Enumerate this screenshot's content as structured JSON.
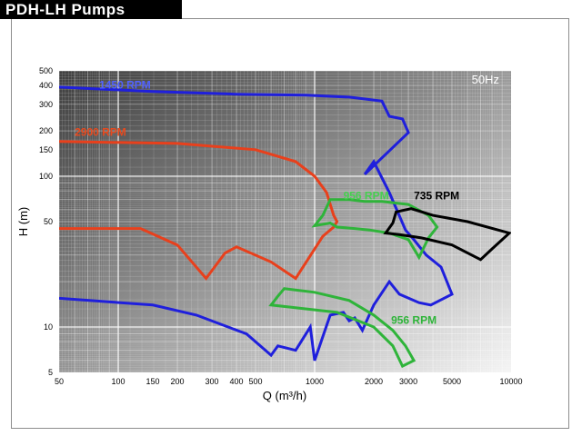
{
  "header": {
    "title": "PDH-LH Pumps"
  },
  "colors": {
    "blue": "#1f1fdc",
    "red": "#e8401c",
    "green": "#2fb43a",
    "black": "#000000"
  },
  "chart_data": {
    "type": "line",
    "xscale": "log",
    "yscale": "log",
    "xlabel": "Q (m³/h)",
    "ylabel": "H (m)",
    "xlim": [
      50,
      10000
    ],
    "ylim": [
      5,
      500
    ],
    "frequency_label": "50Hz",
    "xticks": [
      50,
      100,
      150,
      200,
      300,
      400,
      500,
      1000,
      2000,
      3000,
      5000,
      10000
    ],
    "yticks": [
      5,
      10,
      50,
      100,
      150,
      200,
      300,
      400,
      500
    ],
    "series": [
      {
        "name": "1450 RPM",
        "color": "blue",
        "kind": "line",
        "label_at": [
          80,
          382
        ],
        "label_color": "#5060ff",
        "points": [
          [
            50,
            390
          ],
          [
            150,
            365
          ],
          [
            400,
            350
          ],
          [
            900,
            345
          ],
          [
            1500,
            335
          ],
          [
            2200,
            315
          ],
          [
            2400,
            250
          ],
          [
            2800,
            240
          ],
          [
            3000,
            195
          ],
          [
            1800,
            103
          ],
          [
            2000,
            125
          ],
          [
            2400,
            78
          ],
          [
            2900,
            44
          ],
          [
            3200,
            38
          ],
          [
            3700,
            30
          ],
          [
            4400,
            25
          ],
          [
            5000,
            16.5
          ],
          [
            3900,
            14
          ],
          [
            3400,
            14.5
          ],
          [
            2700,
            16.5
          ],
          [
            2400,
            20
          ],
          [
            2000,
            14
          ],
          [
            1750,
            9.5
          ],
          [
            1600,
            11.5
          ],
          [
            1500,
            11
          ],
          [
            1400,
            12.5
          ],
          [
            1200,
            12
          ],
          [
            1000,
            6
          ],
          [
            950,
            10
          ],
          [
            800,
            7
          ],
          [
            650,
            7.5
          ],
          [
            600,
            6.5
          ],
          [
            450,
            9
          ],
          [
            250,
            12
          ],
          [
            150,
            14
          ],
          [
            50,
            15.5
          ]
        ]
      },
      {
        "name": "2900 RPM",
        "color": "red",
        "kind": "line",
        "label_at": [
          60,
          185
        ],
        "label_color": "#e84a1e",
        "points": [
          [
            50,
            170
          ],
          [
            200,
            165
          ],
          [
            500,
            150
          ],
          [
            800,
            125
          ],
          [
            1000,
            100
          ],
          [
            1150,
            78
          ],
          [
            1250,
            55
          ],
          [
            1300,
            50
          ],
          [
            1250,
            46
          ],
          [
            1100,
            40
          ],
          [
            800,
            21
          ],
          [
            600,
            27
          ],
          [
            400,
            34
          ],
          [
            350,
            31
          ],
          [
            280,
            21
          ],
          [
            200,
            35
          ],
          [
            130,
            45
          ],
          [
            50,
            45
          ]
        ]
      },
      {
        "name": "956 RPM",
        "color": "green",
        "kind": "ring",
        "label_at": [
          1400,
          70
        ],
        "label_color": "#46d050",
        "points": [
          [
            1200,
            70
          ],
          [
            1500,
            70
          ],
          [
            1800,
            68
          ],
          [
            2200,
            68
          ],
          [
            3000,
            65
          ],
          [
            3800,
            55
          ],
          [
            4200,
            46
          ],
          [
            3800,
            39
          ],
          [
            3400,
            29
          ],
          [
            3000,
            38
          ],
          [
            2400,
            42
          ],
          [
            1900,
            44
          ],
          [
            1600,
            45
          ],
          [
            1300,
            46
          ],
          [
            1200,
            49
          ],
          [
            1000,
            47
          ],
          [
            1100,
            55
          ],
          [
            1200,
            70
          ]
        ]
      },
      {
        "name": "956 RPM",
        "color": "green",
        "kind": "ring",
        "label_at": [
          2450,
          10.5
        ],
        "label_color": "#2fb43a",
        "points": [
          [
            700,
            18
          ],
          [
            1000,
            17
          ],
          [
            1500,
            15
          ],
          [
            2000,
            12
          ],
          [
            2500,
            9.5
          ],
          [
            2900,
            7.5
          ],
          [
            3200,
            6
          ],
          [
            2800,
            5.5
          ],
          [
            2500,
            7.5
          ],
          [
            2000,
            10
          ],
          [
            1300,
            12.5
          ],
          [
            1000,
            13
          ],
          [
            600,
            14
          ],
          [
            650,
            16
          ],
          [
            700,
            18
          ]
        ]
      },
      {
        "name": "735 RPM",
        "color": "black",
        "kind": "ring",
        "label_at": [
          3200,
          70
        ],
        "label_color": "#000000",
        "points": [
          [
            2600,
            58
          ],
          [
            3100,
            61
          ],
          [
            4000,
            55
          ],
          [
            6000,
            50
          ],
          [
            9800,
            42
          ],
          [
            8000,
            33
          ],
          [
            7000,
            28
          ],
          [
            5000,
            35
          ],
          [
            3500,
            39
          ],
          [
            2700,
            41
          ],
          [
            2300,
            42
          ],
          [
            2500,
            49
          ],
          [
            2600,
            58
          ]
        ]
      }
    ]
  }
}
